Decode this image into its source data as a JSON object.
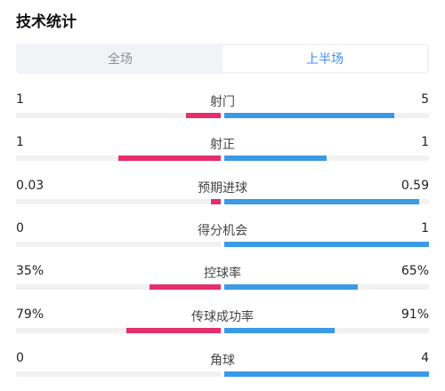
{
  "title": "技术统计",
  "tabs": [
    {
      "label": "全场",
      "active": false
    },
    {
      "label": "上半场",
      "active": true
    }
  ],
  "colors": {
    "home": "#e62e6b",
    "away": "#3a9ae6",
    "accent": "#3d8ff0"
  },
  "stats": [
    {
      "name": "射门",
      "home": "1",
      "away": "5",
      "home_share": 0.17,
      "away_share": 0.83
    },
    {
      "name": "射正",
      "home": "1",
      "away": "1",
      "home_share": 0.5,
      "away_share": 0.5
    },
    {
      "name": "预期进球",
      "home": "0.03",
      "away": "0.59",
      "home_share": 0.05,
      "away_share": 0.95
    },
    {
      "name": "得分机会",
      "home": "0",
      "away": "1",
      "home_share": 0.0,
      "away_share": 1.0
    },
    {
      "name": "控球率",
      "home": "35%",
      "away": "65%",
      "home_share": 0.35,
      "away_share": 0.65
    },
    {
      "name": "传球成功率",
      "home": "79%",
      "away": "91%",
      "home_share": 0.46,
      "away_share": 0.54
    },
    {
      "name": "角球",
      "home": "0",
      "away": "4",
      "home_share": 0.0,
      "away_share": 1.0
    }
  ]
}
